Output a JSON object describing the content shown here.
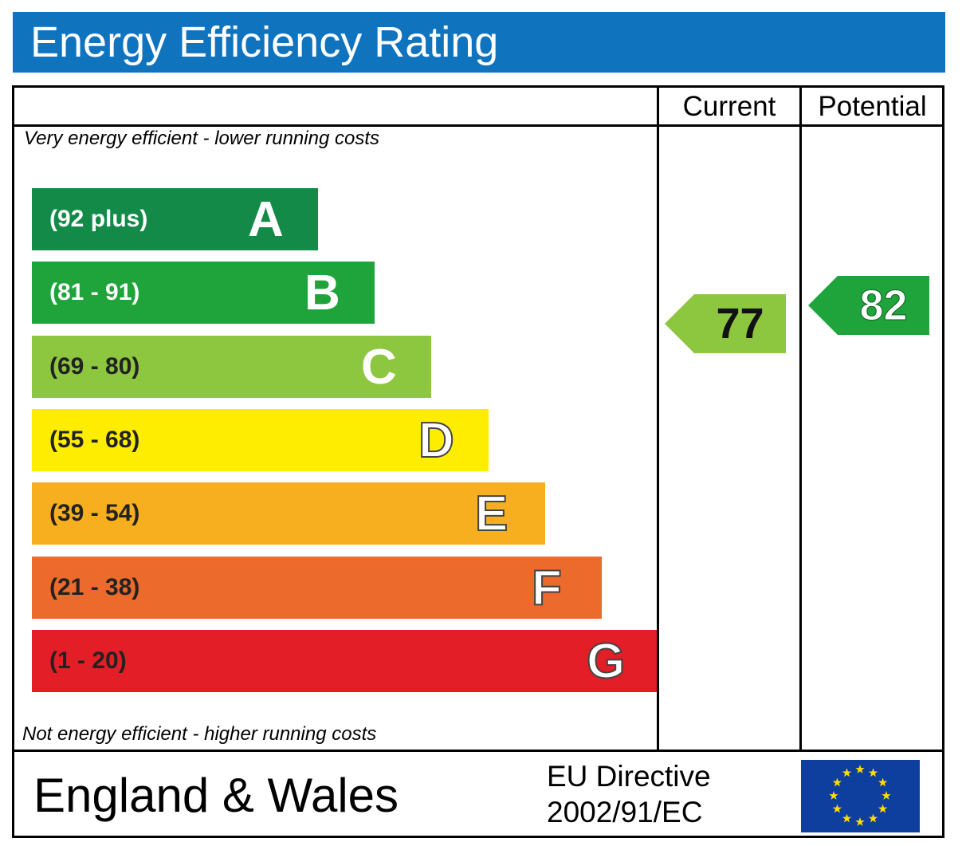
{
  "header": {
    "title": "Energy Efficiency Rating"
  },
  "columns": {
    "current": "Current",
    "potential": "Potential"
  },
  "captions": {
    "top": "Very energy efficient - lower running costs",
    "bottom": "Not energy efficient - higher running costs"
  },
  "footer": {
    "country": "England & Wales",
    "directive_line1": "EU Directive",
    "directive_line2": "2002/91/EC",
    "flag": "eu-flag-icon"
  },
  "chart_data": {
    "type": "bar",
    "categories": [
      "A",
      "B",
      "C",
      "D",
      "E",
      "F",
      "G"
    ],
    "bands": [
      {
        "letter": "A",
        "range": "(92 plus)",
        "min": 92,
        "max": null,
        "color": "#138a47"
      },
      {
        "letter": "B",
        "range": "(81 - 91)",
        "min": 81,
        "max": 91,
        "color": "#1fa33b"
      },
      {
        "letter": "C",
        "range": "(69 - 80)",
        "min": 69,
        "max": 80,
        "color": "#8dc63f"
      },
      {
        "letter": "D",
        "range": "(55 - 68)",
        "min": 55,
        "max": 68,
        "color": "#ffed00"
      },
      {
        "letter": "E",
        "range": "(39 - 54)",
        "min": 39,
        "max": 54,
        "color": "#f7ae1f"
      },
      {
        "letter": "F",
        "range": "(21 - 38)",
        "min": 21,
        "max": 38,
        "color": "#ec6a2c"
      },
      {
        "letter": "G",
        "range": "(1 - 20)",
        "min": 1,
        "max": 20,
        "color": "#e31e26"
      }
    ],
    "ratings": {
      "current": {
        "value": 77,
        "band": "C",
        "color": "#8dc63f"
      },
      "potential": {
        "value": 82,
        "band": "B",
        "color": "#1fa33b"
      }
    }
  }
}
